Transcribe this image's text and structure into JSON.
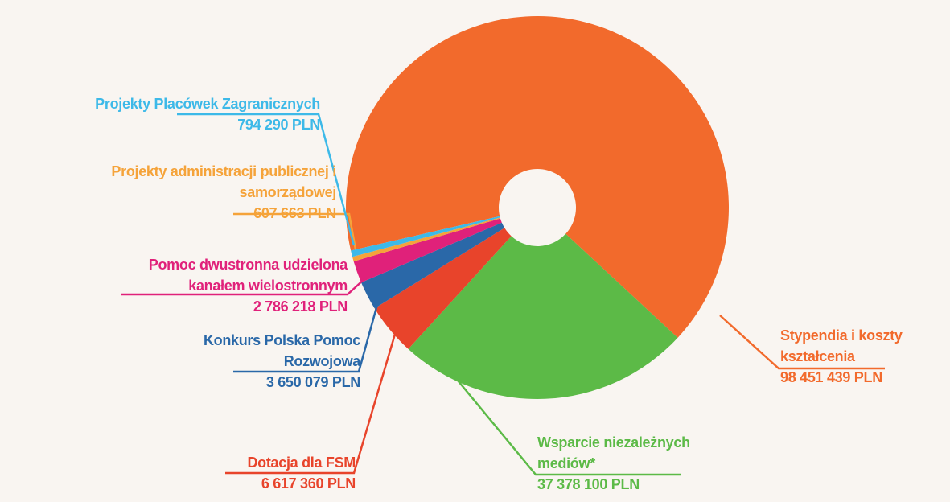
{
  "chart_data": {
    "type": "donut",
    "categories": [
      "Stypendia i koszty kształcenia",
      "Wsparcie niezależnych mediów*",
      "Dotacja dla FSM",
      "Konkurs Polska Pomoc Rozwojowa",
      "Pomoc dwustronna udzielona kanałem wielostronnym",
      "Projekty administracji publicznej i samorządowej",
      "Projekty Placówek Zagranicznych"
    ],
    "values": [
      98451439,
      37378100,
      6617360,
      3650079,
      2786218,
      607663,
      794290
    ],
    "value_labels": [
      "98 451 439 PLN",
      "37 378 100 PLN",
      "6 617 360 PLN",
      "3 650 079 PLN",
      "2 786 218 PLN",
      "607 663 PLN",
      "794 290 PLN"
    ],
    "colors": [
      "#f26a2c",
      "#5cba47",
      "#e8442b",
      "#2a68a8",
      "#e0217a",
      "#f5a33a",
      "#3db9e8"
    ]
  }
}
